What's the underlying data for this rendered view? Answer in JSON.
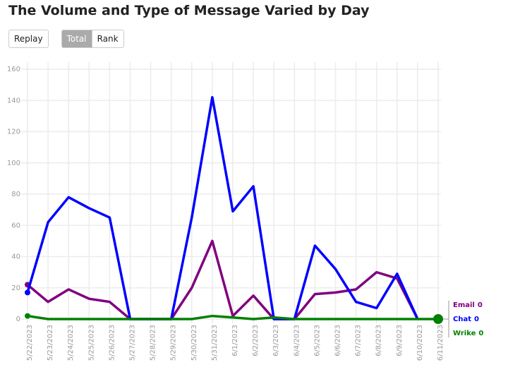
{
  "header": {
    "title": "The Volume and Type of Message Varied by Day"
  },
  "buttons": [
    {
      "label": "Replay"
    },
    {
      "label": "Total",
      "active": true
    },
    {
      "label": "Rank"
    }
  ],
  "chart_data": {
    "type": "line",
    "categories": [
      "5/22/2023",
      "5/23/2023",
      "5/24/2023",
      "5/25/2023",
      "5/26/2023",
      "5/27/2023",
      "5/28/2023",
      "5/29/2023",
      "5/30/2023",
      "5/31/2023",
      "6/1/2023",
      "6/2/2023",
      "6/3/2023",
      "6/4/2023",
      "6/5/2023",
      "6/6/2023",
      "6/7/2023",
      "6/8/2023",
      "6/9/2023",
      "6/10/2023",
      "6/11/2023"
    ],
    "series": [
      {
        "name": "Email",
        "color": "#800080",
        "values": [
          22,
          11,
          19,
          13,
          11,
          0,
          0,
          0,
          20,
          50,
          2,
          15,
          0,
          0,
          16,
          17,
          19,
          30,
          26,
          0,
          null
        ]
      },
      {
        "name": "Chat",
        "color": "#0000ff",
        "values": [
          17,
          62,
          78,
          71,
          65,
          0,
          0,
          0,
          65,
          142,
          69,
          85,
          0,
          0,
          47,
          32,
          11,
          7,
          29,
          0,
          null
        ]
      },
      {
        "name": "Wrike",
        "color": "#008000",
        "values": [
          2,
          0,
          0,
          0,
          0,
          0,
          0,
          0,
          0,
          2,
          1,
          0,
          1,
          0,
          0,
          0,
          0,
          0,
          0,
          0,
          0
        ]
      }
    ],
    "ylim": [
      0,
      160
    ],
    "yticks": [
      0,
      20,
      40,
      60,
      80,
      100,
      120,
      140,
      160
    ],
    "grid": true
  }
}
